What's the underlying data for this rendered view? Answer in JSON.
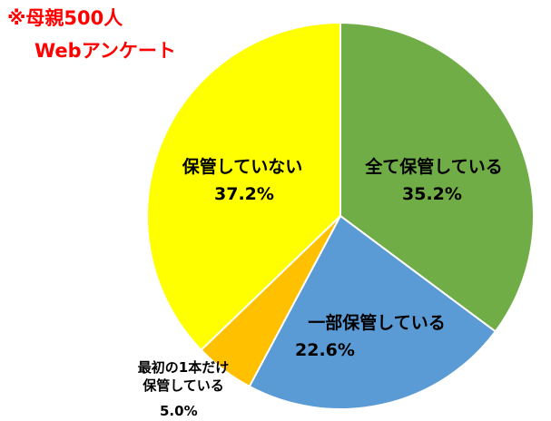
{
  "chart_data": {
    "type": "pie",
    "annotations": [
      "※母親500人",
      "Webアンケート"
    ],
    "categories": [
      "全て保管している",
      "一部保管している",
      "最初の1本だけ保管している",
      "保管していない"
    ],
    "values": [
      35.2,
      22.6,
      5.0,
      37.2
    ],
    "value_labels": [
      "35.2%",
      "22.6%",
      "5.0%",
      "37.2%"
    ],
    "colors": [
      "#70ad47",
      "#5b9bd5",
      "#ffc000",
      "#ffff00"
    ],
    "annotation_color": "#ff0000"
  }
}
